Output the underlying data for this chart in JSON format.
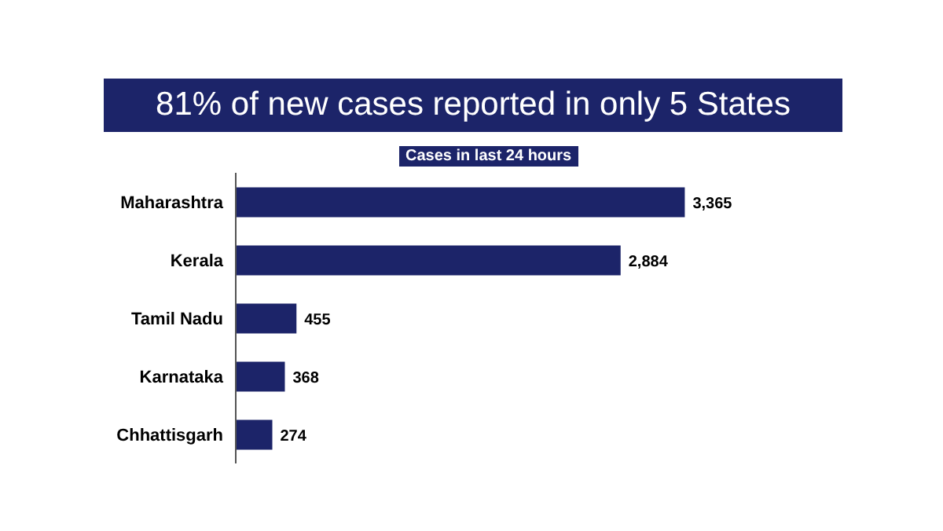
{
  "chart_data": {
    "type": "bar",
    "orientation": "horizontal",
    "title": "81% of new cases reported in only 5 States",
    "subtitle": "Cases in last 24 hours",
    "categories": [
      "Maharashtra",
      "Kerala",
      "Tamil Nadu",
      "Karnataka",
      "Chhattisgarh"
    ],
    "values": [
      3365,
      2884,
      455,
      368,
      274
    ],
    "value_labels": [
      "3,365",
      "2,884",
      "455",
      "368",
      "274"
    ],
    "color": "#1c2469"
  }
}
